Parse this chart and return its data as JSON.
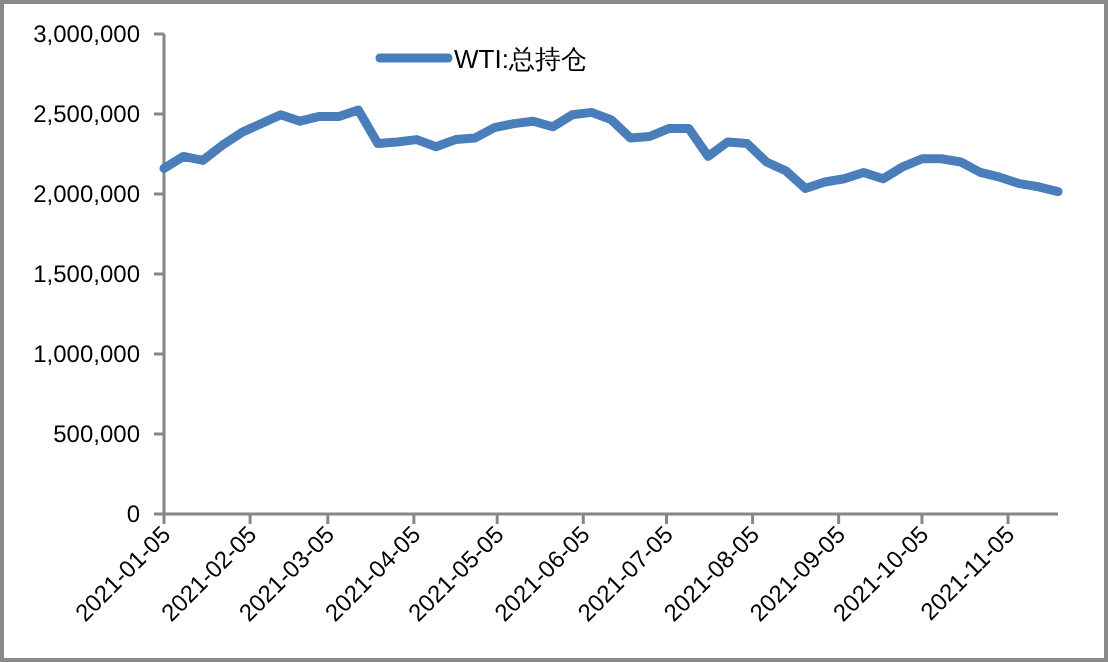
{
  "chart_data": {
    "type": "line",
    "x": [
      "2021-01-05",
      "2021-01-12",
      "2021-01-19",
      "2021-01-26",
      "2021-02-02",
      "2021-02-09",
      "2021-02-16",
      "2021-02-23",
      "2021-03-02",
      "2021-03-09",
      "2021-03-16",
      "2021-03-23",
      "2021-03-30",
      "2021-04-06",
      "2021-04-13",
      "2021-04-20",
      "2021-04-27",
      "2021-05-04",
      "2021-05-11",
      "2021-05-18",
      "2021-05-25",
      "2021-06-01",
      "2021-06-08",
      "2021-06-15",
      "2021-06-22",
      "2021-06-29",
      "2021-07-06",
      "2021-07-13",
      "2021-07-20",
      "2021-07-27",
      "2021-08-03",
      "2021-08-10",
      "2021-08-17",
      "2021-08-24",
      "2021-08-31",
      "2021-09-07",
      "2021-09-14",
      "2021-09-21",
      "2021-09-28",
      "2021-10-05",
      "2021-10-12",
      "2021-10-19",
      "2021-10-26",
      "2021-11-02",
      "2021-11-09",
      "2021-11-16",
      "2021-11-23"
    ],
    "series": [
      {
        "name": "WTI:总持仓",
        "color": "#4a7ebb",
        "values": [
          2160000,
          2235000,
          2210000,
          2305000,
          2385000,
          2440000,
          2495000,
          2455000,
          2485000,
          2485000,
          2525000,
          2315000,
          2325000,
          2340000,
          2295000,
          2340000,
          2350000,
          2415000,
          2440000,
          2455000,
          2420000,
          2495000,
          2510000,
          2465000,
          2350000,
          2360000,
          2410000,
          2410000,
          2235000,
          2325000,
          2315000,
          2200000,
          2145000,
          2035000,
          2075000,
          2095000,
          2135000,
          2095000,
          2170000,
          2220000,
          2220000,
          2200000,
          2135000,
          2105000,
          2065000,
          2045000,
          2015000
        ]
      }
    ],
    "xlim": [
      "2021-01-05",
      "2021-11-23"
    ],
    "xticks": [
      "2021-01-05",
      "2021-02-05",
      "2021-03-05",
      "2021-04-05",
      "2021-05-05",
      "2021-06-05",
      "2021-07-05",
      "2021-08-05",
      "2021-09-05",
      "2021-10-05",
      "2021-11-05"
    ],
    "ylim": [
      0,
      3000000
    ],
    "yticks": [
      {
        "value": 0,
        "label": "0"
      },
      {
        "value": 500000,
        "label": "500,000"
      },
      {
        "value": 1000000,
        "label": "1,000,000"
      },
      {
        "value": 1500000,
        "label": "1,500,000"
      },
      {
        "value": 2000000,
        "label": "2,000,000"
      },
      {
        "value": 2500000,
        "label": "2,500,000"
      },
      {
        "value": 3000000,
        "label": "3,000,000"
      }
    ],
    "legend": "top",
    "line_style": "solid",
    "marker": "none",
    "grid": false
  }
}
